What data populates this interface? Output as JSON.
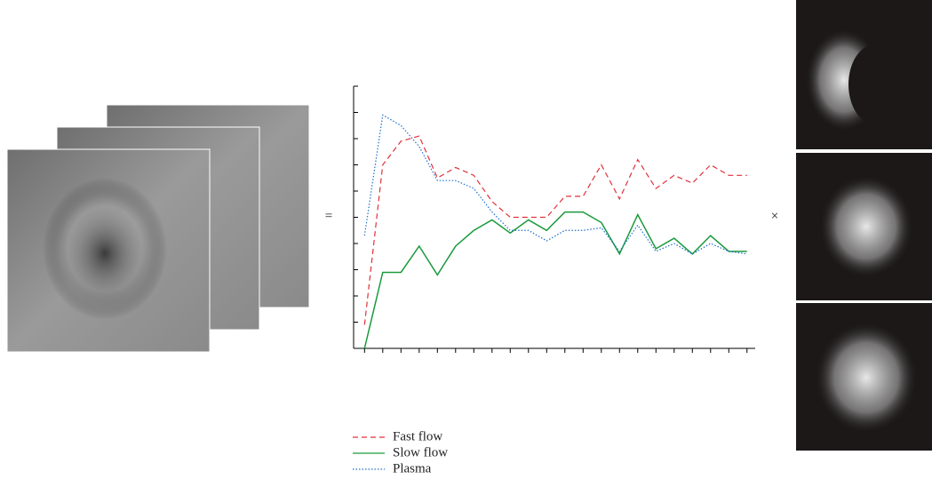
{
  "chart_data": {
    "type": "line",
    "x": [
      1,
      2,
      3,
      4,
      5,
      6,
      7,
      8,
      9,
      10,
      11,
      12,
      13,
      14,
      15,
      16,
      17,
      18,
      19,
      20,
      21,
      22
    ],
    "series": [
      {
        "name": "Fast flow",
        "color": "#e0303a",
        "dash": "6,4",
        "values": [
          0.9,
          7.0,
          7.9,
          8.1,
          6.5,
          6.9,
          6.6,
          5.6,
          5.0,
          5.0,
          5.0,
          5.8,
          5.8,
          7.0,
          5.7,
          7.2,
          6.1,
          6.6,
          6.3,
          7.0,
          6.6,
          6.6
        ]
      },
      {
        "name": "Slow flow",
        "color": "#1a9a3c",
        "dash": "",
        "values": [
          0,
          2.9,
          2.9,
          3.9,
          2.8,
          3.9,
          4.5,
          4.9,
          4.4,
          4.9,
          4.5,
          5.2,
          5.2,
          4.8,
          3.6,
          5.1,
          3.8,
          4.2,
          3.6,
          4.3,
          3.7,
          3.7
        ]
      },
      {
        "name": "Plasma",
        "color": "#1f6fd0",
        "dash": "1.5,2",
        "values": [
          4.3,
          8.9,
          8.5,
          7.7,
          6.4,
          6.4,
          6.1,
          5.2,
          4.5,
          4.5,
          4.1,
          4.5,
          4.5,
          4.6,
          3.7,
          4.7,
          3.7,
          4.0,
          3.6,
          4.0,
          3.7,
          3.6
        ]
      }
    ],
    "xlim": [
      0.4,
      22.45
    ],
    "ylim": [
      0,
      10
    ],
    "xticks": [
      1,
      2,
      3,
      4,
      5,
      6,
      7,
      8,
      9,
      10,
      11,
      12,
      13,
      14,
      15,
      16,
      17,
      18,
      19,
      20,
      21,
      22
    ],
    "yticks": [
      0,
      1,
      2,
      3,
      4,
      5,
      6,
      7,
      8,
      9,
      10
    ],
    "annotations": [
      "=",
      "×"
    ]
  }
}
